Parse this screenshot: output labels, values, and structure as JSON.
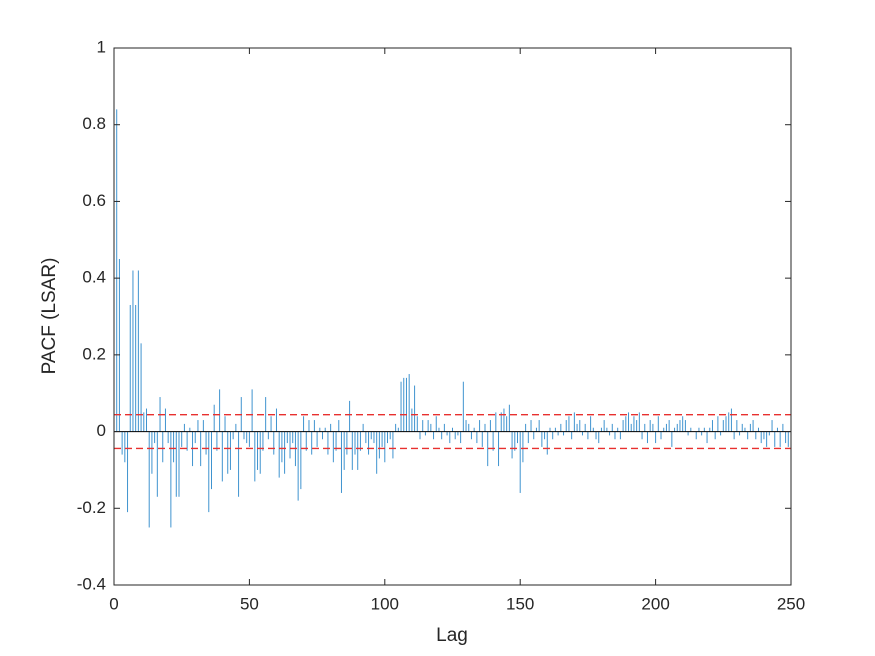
{
  "chart_data": {
    "type": "stem",
    "xlabel": "Lag",
    "ylabel": "PACF (LSAR)",
    "xlim": [
      0,
      250
    ],
    "xticks": [
      0,
      50,
      100,
      150,
      200,
      250
    ],
    "ylim": [
      -0.4,
      1
    ],
    "yticks": [
      -0.4,
      -0.2,
      0,
      0.2,
      0.4,
      0.6,
      0.8,
      1
    ],
    "bounds": [
      0.044,
      -0.044
    ],
    "bounds_color": "#e8302f",
    "color": "#3f93cf",
    "x": [
      1,
      2,
      3,
      4,
      5,
      6,
      7,
      8,
      9,
      10,
      11,
      12,
      13,
      14,
      15,
      16,
      17,
      18,
      19,
      20,
      21,
      22,
      23,
      24,
      25,
      26,
      27,
      28,
      29,
      30,
      31,
      32,
      33,
      34,
      35,
      36,
      37,
      38,
      39,
      40,
      41,
      42,
      43,
      44,
      45,
      46,
      47,
      48,
      49,
      50,
      51,
      52,
      53,
      54,
      55,
      56,
      57,
      58,
      59,
      60,
      61,
      62,
      63,
      64,
      65,
      66,
      67,
      68,
      69,
      70,
      71,
      72,
      73,
      74,
      75,
      76,
      77,
      78,
      79,
      80,
      81,
      82,
      83,
      84,
      85,
      86,
      87,
      88,
      89,
      90,
      91,
      92,
      93,
      94,
      95,
      96,
      97,
      98,
      99,
      100,
      101,
      102,
      103,
      104,
      105,
      106,
      107,
      108,
      109,
      110,
      111,
      112,
      113,
      114,
      115,
      116,
      117,
      118,
      119,
      120,
      121,
      122,
      123,
      124,
      125,
      126,
      127,
      128,
      129,
      130,
      131,
      132,
      133,
      134,
      135,
      136,
      137,
      138,
      139,
      140,
      141,
      142,
      143,
      144,
      145,
      146,
      147,
      148,
      149,
      150,
      151,
      152,
      153,
      154,
      155,
      156,
      157,
      158,
      159,
      160,
      161,
      162,
      163,
      164,
      165,
      166,
      167,
      168,
      169,
      170,
      171,
      172,
      173,
      174,
      175,
      176,
      177,
      178,
      179,
      180,
      181,
      182,
      183,
      184,
      185,
      186,
      187,
      188,
      189,
      190,
      191,
      192,
      193,
      194,
      195,
      196,
      197,
      198,
      199,
      200,
      201,
      202,
      203,
      204,
      205,
      206,
      207,
      208,
      209,
      210,
      211,
      212,
      213,
      214,
      215,
      216,
      217,
      218,
      219,
      220,
      221,
      222,
      223,
      224,
      225,
      226,
      227,
      228,
      229,
      230,
      231,
      232,
      233,
      234,
      235,
      236,
      237,
      238,
      239,
      240,
      241,
      242,
      243,
      244,
      245,
      246,
      247,
      248,
      249,
      250
    ],
    "values": [
      0.84,
      0.45,
      -0.06,
      -0.08,
      -0.21,
      0.33,
      0.42,
      0.33,
      0.42,
      0.23,
      0.05,
      0.06,
      -0.25,
      -0.11,
      -0.03,
      -0.17,
      0.09,
      -0.08,
      0.06,
      -0.03,
      -0.25,
      -0.08,
      -0.17,
      -0.17,
      -0.04,
      0.02,
      -0.05,
      0.01,
      -0.09,
      -0.03,
      0.03,
      -0.09,
      0.03,
      -0.06,
      -0.21,
      -0.15,
      0.07,
      -0.05,
      0.11,
      -0.13,
      0.04,
      -0.11,
      -0.1,
      -0.02,
      0.02,
      -0.17,
      0.09,
      -0.02,
      -0.03,
      -0.04,
      0.11,
      -0.13,
      -0.1,
      -0.11,
      -0.05,
      0.09,
      -0.02,
      0.04,
      -0.06,
      0.06,
      -0.12,
      -0.08,
      -0.11,
      -0.03,
      -0.07,
      -0.03,
      -0.09,
      -0.18,
      -0.15,
      0.04,
      -0.05,
      0.03,
      -0.06,
      0.03,
      -0.04,
      0.01,
      -0.02,
      0.01,
      -0.06,
      0.02,
      -0.08,
      -0.05,
      0.03,
      -0.16,
      -0.1,
      -0.06,
      0.08,
      -0.1,
      -0.06,
      -0.1,
      -0.05,
      0.02,
      -0.03,
      -0.06,
      -0.02,
      -0.03,
      -0.11,
      -0.07,
      -0.04,
      -0.08,
      -0.03,
      -0.02,
      -0.07,
      0.02,
      0.01,
      0.13,
      0.14,
      0.14,
      0.15,
      0.06,
      0.12,
      0.04,
      -0.02,
      0.03,
      -0.01,
      0.03,
      0.02,
      -0.02,
      0.04,
      0.01,
      -0.02,
      0.02,
      -0.01,
      -0.03,
      0.01,
      -0.02,
      -0.01,
      -0.03,
      0.13,
      0.03,
      0.02,
      -0.02,
      0.01,
      -0.03,
      0.03,
      -0.04,
      0.02,
      -0.09,
      0.03,
      -0.05,
      0.05,
      -0.09,
      0.05,
      0.06,
      0.04,
      0.07,
      -0.07,
      -0.05,
      -0.03,
      -0.16,
      -0.08,
      0.02,
      -0.03,
      0.03,
      -0.02,
      0.01,
      0.03,
      -0.04,
      -0.02,
      -0.06,
      0.01,
      -0.02,
      0.01,
      -0.01,
      0.02,
      -0.01,
      0.03,
      0.04,
      -0.02,
      0.05,
      0.02,
      0.03,
      -0.01,
      0.02,
      -0.02,
      0.04,
      0.01,
      -0.02,
      -0.03,
      0.01,
      0.03,
      0.01,
      -0.01,
      0.02,
      -0.02,
      0.01,
      -0.02,
      0.03,
      0.04,
      0.05,
      0.02,
      0.04,
      0.03,
      0.05,
      -0.02,
      0.02,
      -0.03,
      0.03,
      0.02,
      -0.03,
      0.04,
      -0.02,
      0.01,
      0.02,
      0.03,
      -0.04,
      0.01,
      0.02,
      0.03,
      0.04,
      0.03,
      -0.01,
      0.01,
      0,
      -0.02,
      0.01,
      -0.01,
      0.01,
      -0.03,
      0.01,
      0.03,
      -0.02,
      0.04,
      -0.01,
      0.03,
      0.04,
      0.05,
      0.06,
      -0.02,
      0.03,
      -0.01,
      0.02,
      0.01,
      -0.02,
      0.02,
      0.03,
      -0.02,
      0.01,
      -0.03,
      -0.02,
      -0.04,
      -0.01,
      0.03,
      -0.04,
      0.01,
      -0.04,
      0.02,
      -0.03,
      -0.04,
      0.03
    ]
  }
}
